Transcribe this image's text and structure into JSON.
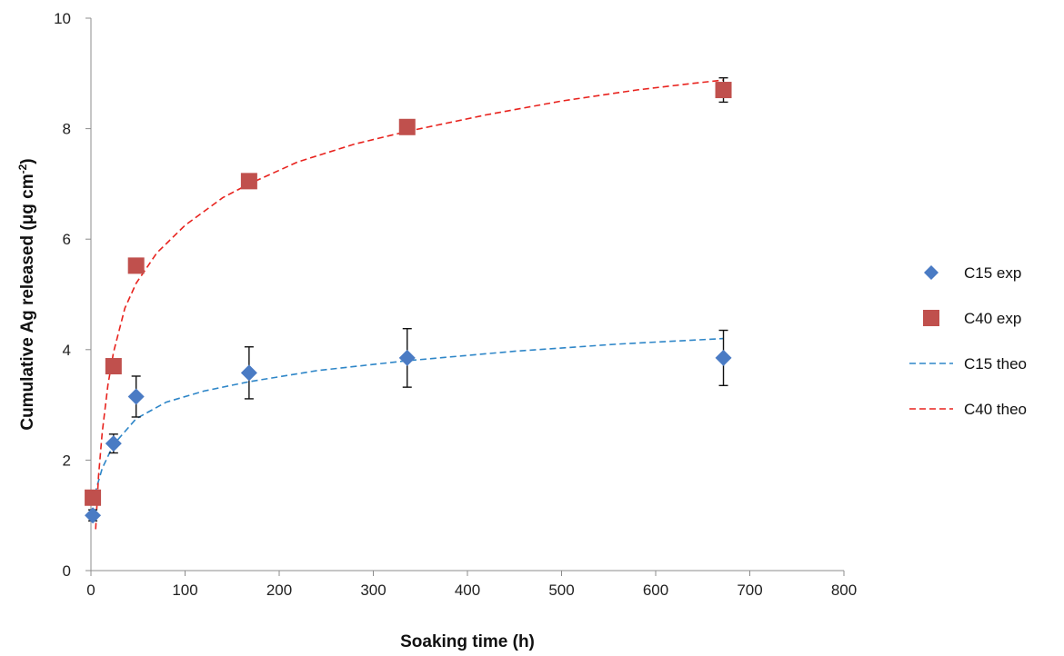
{
  "chart_data": {
    "type": "scatter",
    "xlabel": "Soaking time (h)",
    "ylabel": {
      "main": "Cumulative Ag released (μg cm",
      "sup": "-2",
      "end": ")"
    },
    "xlim": [
      0,
      800
    ],
    "ylim": [
      0,
      10
    ],
    "x_ticks": [
      0,
      100,
      200,
      300,
      400,
      500,
      600,
      700,
      800
    ],
    "y_ticks": [
      0,
      2,
      4,
      6,
      8,
      10
    ],
    "grid": false,
    "legend_position": "right",
    "series": [
      {
        "name": "C15 exp",
        "kind": "markers",
        "marker": "diamond",
        "color": "#4a7bc4",
        "points": [
          {
            "x": 2,
            "y": 1.0,
            "err": 0.1
          },
          {
            "x": 24,
            "y": 2.3,
            "err": 0.17
          },
          {
            "x": 48,
            "y": 3.15,
            "err": 0.37
          },
          {
            "x": 168,
            "y": 3.58,
            "err": 0.47
          },
          {
            "x": 336,
            "y": 3.85,
            "err": 0.53
          },
          {
            "x": 672,
            "y": 3.85,
            "err": 0.5
          }
        ]
      },
      {
        "name": "C40 exp",
        "kind": "markers",
        "marker": "square",
        "color": "#c0504d",
        "points": [
          {
            "x": 2,
            "y": 1.32,
            "err": 0.1
          },
          {
            "x": 24,
            "y": 3.7,
            "err": 0.1
          },
          {
            "x": 48,
            "y": 5.52,
            "err": 0.08
          },
          {
            "x": 168,
            "y": 7.05,
            "err": 0.1
          },
          {
            "x": 336,
            "y": 8.03,
            "err": 0.12
          },
          {
            "x": 672,
            "y": 8.7,
            "err": 0.22
          }
        ]
      },
      {
        "name": "C15 theo",
        "kind": "line",
        "dash": true,
        "color": "#2e86c8",
        "points": [
          {
            "x": 2,
            "y": 1.2
          },
          {
            "x": 6,
            "y": 1.5
          },
          {
            "x": 12,
            "y": 1.85
          },
          {
            "x": 24,
            "y": 2.28
          },
          {
            "x": 48,
            "y": 2.75
          },
          {
            "x": 80,
            "y": 3.05
          },
          {
            "x": 120,
            "y": 3.25
          },
          {
            "x": 168,
            "y": 3.42
          },
          {
            "x": 240,
            "y": 3.62
          },
          {
            "x": 336,
            "y": 3.8
          },
          {
            "x": 450,
            "y": 3.97
          },
          {
            "x": 560,
            "y": 4.1
          },
          {
            "x": 672,
            "y": 4.2
          }
        ]
      },
      {
        "name": "C40 theo",
        "kind": "line",
        "dash": true,
        "color": "#e8231e",
        "points": [
          {
            "x": 5,
            "y": 0.75
          },
          {
            "x": 8,
            "y": 1.7
          },
          {
            "x": 12,
            "y": 2.5
          },
          {
            "x": 18,
            "y": 3.35
          },
          {
            "x": 24,
            "y": 3.95
          },
          {
            "x": 36,
            "y": 4.75
          },
          {
            "x": 48,
            "y": 5.2
          },
          {
            "x": 70,
            "y": 5.75
          },
          {
            "x": 100,
            "y": 6.25
          },
          {
            "x": 140,
            "y": 6.75
          },
          {
            "x": 168,
            "y": 7.0
          },
          {
            "x": 220,
            "y": 7.4
          },
          {
            "x": 280,
            "y": 7.72
          },
          {
            "x": 336,
            "y": 7.95
          },
          {
            "x": 420,
            "y": 8.25
          },
          {
            "x": 500,
            "y": 8.5
          },
          {
            "x": 580,
            "y": 8.7
          },
          {
            "x": 640,
            "y": 8.82
          },
          {
            "x": 672,
            "y": 8.88
          }
        ]
      }
    ]
  }
}
